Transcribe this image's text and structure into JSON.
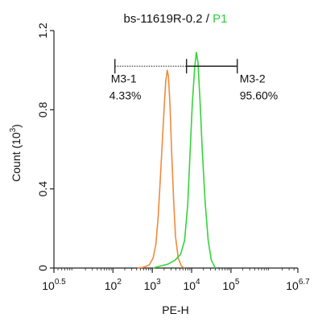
{
  "chart_data": {
    "type": "line",
    "title_main": "bs-11619R-0.2 / ",
    "title_accent": "P1",
    "accent_color": "#2ecc40",
    "xlabel": "PE-H",
    "ylabel": "Count (10",
    "ylabel_exp": "3",
    "ylabel_close": ")",
    "x_scale": "log10",
    "xlim": [
      0.5,
      6.7
    ],
    "ylim": [
      0,
      1.2
    ],
    "x_ticks": [
      {
        "exp": 0.5,
        "base": "10",
        "sup": "0.5"
      },
      {
        "exp": 2,
        "base": "10",
        "sup": "2"
      },
      {
        "exp": 3,
        "base": "10",
        "sup": "3"
      },
      {
        "exp": 4,
        "base": "10",
        "sup": "4"
      },
      {
        "exp": 5,
        "base": "10",
        "sup": "5"
      },
      {
        "exp": 6.7,
        "base": "10",
        "sup": "6.7"
      }
    ],
    "y_ticks": [
      {
        "value": 0,
        "label": "0"
      },
      {
        "value": 0.4,
        "label": "0.4"
      },
      {
        "value": 0.8,
        "label": "0.8"
      },
      {
        "value": 1.2,
        "label": "1.2"
      }
    ],
    "series": [
      {
        "color": "#f08a3c",
        "points": [
          [
            2.62,
            0.0
          ],
          [
            2.78,
            0.004
          ],
          [
            2.92,
            0.016
          ],
          [
            3.02,
            0.05
          ],
          [
            3.09,
            0.12
          ],
          [
            3.15,
            0.26
          ],
          [
            3.2,
            0.44
          ],
          [
            3.25,
            0.62
          ],
          [
            3.3,
            0.8
          ],
          [
            3.34,
            0.94
          ],
          [
            3.38,
            1.0
          ],
          [
            3.41,
            0.97
          ],
          [
            3.45,
            0.82
          ],
          [
            3.49,
            0.6
          ],
          [
            3.54,
            0.35
          ],
          [
            3.59,
            0.16
          ],
          [
            3.66,
            0.05
          ],
          [
            3.74,
            0.01
          ],
          [
            3.82,
            0.0
          ]
        ]
      },
      {
        "color": "#35d43a",
        "points": [
          [
            3.02,
            0.0
          ],
          [
            3.2,
            0.01
          ],
          [
            3.4,
            0.02
          ],
          [
            3.58,
            0.04
          ],
          [
            3.72,
            0.07
          ],
          [
            3.82,
            0.14
          ],
          [
            3.9,
            0.32
          ],
          [
            3.96,
            0.58
          ],
          [
            4.02,
            0.84
          ],
          [
            4.08,
            1.02
          ],
          [
            4.12,
            1.09
          ],
          [
            4.16,
            1.04
          ],
          [
            4.21,
            0.86
          ],
          [
            4.27,
            0.6
          ],
          [
            4.34,
            0.34
          ],
          [
            4.42,
            0.14
          ],
          [
            4.5,
            0.04
          ],
          [
            4.6,
            0.0
          ]
        ]
      }
    ],
    "gates": [
      {
        "name": "M3-1",
        "percent": "4.33%",
        "x_from": 2.05,
        "x_to": 3.87,
        "y": 1.02
      },
      {
        "name": "M3-2",
        "percent": "95.60%",
        "x_from": 3.87,
        "x_to": 5.16,
        "y": 1.02
      }
    ]
  }
}
